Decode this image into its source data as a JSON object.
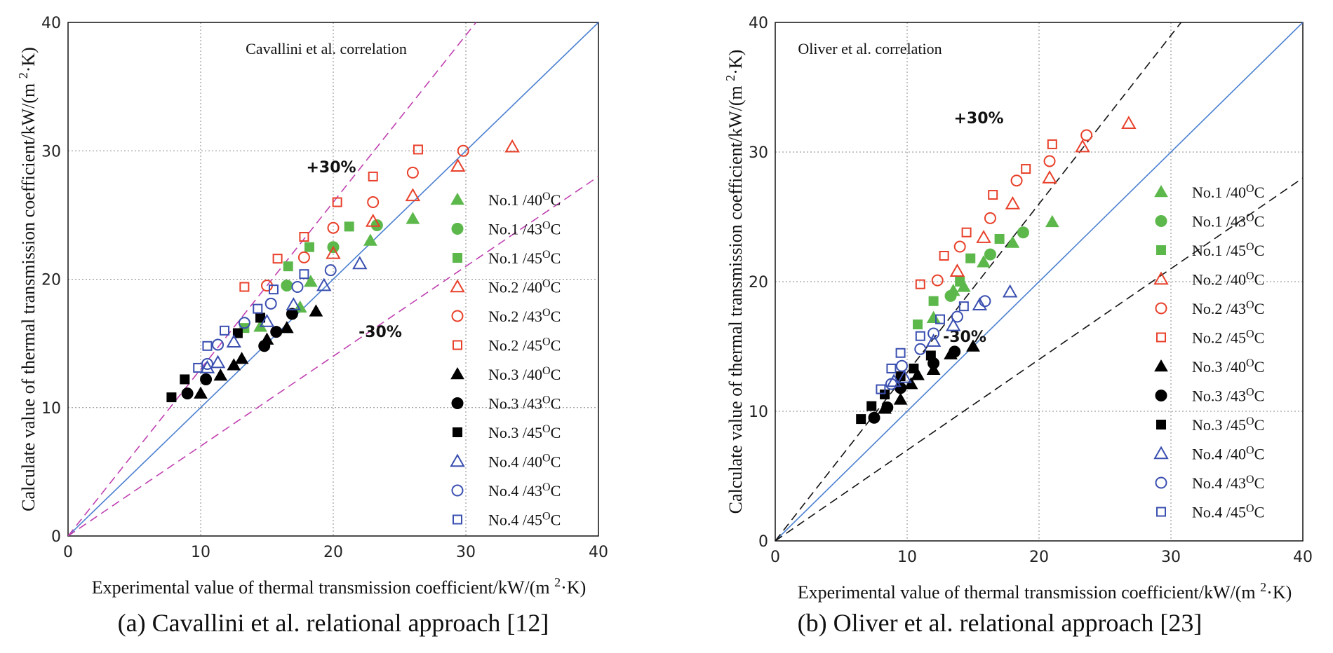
{
  "colors": {
    "green": "#5cb84a",
    "red": "#e8402a",
    "black": "#000000",
    "blue": "#3a4fb0",
    "diagonal": "#4a7fd0",
    "band_a": "#c040b0",
    "band_b": "#111111",
    "grid": "#888888"
  },
  "legend": [
    {
      "label": "No.1 /40",
      "unit": "C",
      "sup": "O",
      "color_key": "green",
      "marker": "triangle",
      "filled": true
    },
    {
      "label": "No.1 /43",
      "unit": "C",
      "sup": "O",
      "color_key": "green",
      "marker": "circle",
      "filled": true
    },
    {
      "label": "No.1 /45",
      "unit": "C",
      "sup": "O",
      "color_key": "green",
      "marker": "square",
      "filled": true
    },
    {
      "label": "No.2 /40",
      "unit": "C",
      "sup": "O",
      "color_key": "red",
      "marker": "triangle",
      "filled": false
    },
    {
      "label": "No.2 /43",
      "unit": "C",
      "sup": "O",
      "color_key": "red",
      "marker": "circle",
      "filled": false
    },
    {
      "label": "No.2 /45",
      "unit": "C",
      "sup": "O",
      "color_key": "red",
      "marker": "square",
      "filled": false
    },
    {
      "label": "No.3 /40",
      "unit": "C",
      "sup": "O",
      "color_key": "black",
      "marker": "triangle",
      "filled": true
    },
    {
      "label": "No.3 /43",
      "unit": "C",
      "sup": "O",
      "color_key": "black",
      "marker": "circle",
      "filled": true
    },
    {
      "label": "No.3 /45",
      "unit": "C",
      "sup": "O",
      "color_key": "black",
      "marker": "square",
      "filled": true
    },
    {
      "label": "No.4 /40",
      "unit": "C",
      "sup": "O",
      "color_key": "blue",
      "marker": "triangle",
      "filled": false
    },
    {
      "label": "No.4 /43",
      "unit": "C",
      "sup": "O",
      "color_key": "blue",
      "marker": "circle",
      "filled": false
    },
    {
      "label": "No.4 /45",
      "unit": "C",
      "sup": "O",
      "color_key": "blue",
      "marker": "square",
      "filled": false
    }
  ],
  "chart_data": [
    {
      "type": "scatter",
      "title": "Cavallini et al. correlation",
      "caption": "(a) Cavallini et al. relational approach [12]",
      "xlabel": "Experimental value of thermal transmission coefficient/kW/(m 2·K)",
      "ylabel": "Calculate value of thermal transmission coefficient/kW/(m 2·K)",
      "xlim": [
        0,
        40
      ],
      "ylim": [
        0,
        40
      ],
      "x_ticks": [
        0,
        10,
        20,
        30,
        40
      ],
      "y_ticks": [
        0,
        10,
        20,
        30,
        40
      ],
      "grid": "dotted at 10, 20, 30",
      "reference_lines": {
        "diagonal": "y = x",
        "upper": "+30%",
        "lower": "-30%",
        "band_color_key": "band_a"
      },
      "band_labels": {
        "upper": "+30%",
        "lower": "-30%"
      },
      "series": [
        {
          "name": "No.1 /40oC",
          "points": [
            [
              14.5,
              16.3
            ],
            [
              17.5,
              17.8
            ],
            [
              18.3,
              19.8
            ],
            [
              22.8,
              23.0
            ],
            [
              26.0,
              24.7
            ]
          ]
        },
        {
          "name": "No.1 /43oC",
          "points": [
            [
              16.5,
              19.5
            ],
            [
              20.0,
              22.5
            ],
            [
              23.3,
              24.2
            ]
          ]
        },
        {
          "name": "No.1 /45oC",
          "points": [
            [
              13.3,
              16.2
            ],
            [
              16.6,
              21.0
            ],
            [
              18.2,
              22.5
            ],
            [
              21.2,
              24.1
            ]
          ]
        },
        {
          "name": "No.2 /40oC",
          "points": [
            [
              20.0,
              22.0
            ],
            [
              23.0,
              24.5
            ],
            [
              26.0,
              26.5
            ],
            [
              29.4,
              28.8
            ],
            [
              33.5,
              30.3
            ]
          ]
        },
        {
          "name": "No.2 /43oC",
          "points": [
            [
              15.0,
              19.5
            ],
            [
              17.8,
              21.7
            ],
            [
              20.0,
              24.0
            ],
            [
              23.0,
              26.0
            ],
            [
              26.0,
              28.3
            ],
            [
              29.8,
              30.0
            ]
          ]
        },
        {
          "name": "No.2 /45oC",
          "points": [
            [
              13.3,
              19.4
            ],
            [
              15.8,
              21.6
            ],
            [
              17.8,
              23.3
            ],
            [
              20.3,
              26.0
            ],
            [
              23.0,
              28.0
            ],
            [
              26.4,
              30.1
            ]
          ]
        },
        {
          "name": "No.3 /40oC",
          "points": [
            [
              10.0,
              11.1
            ],
            [
              11.5,
              12.5
            ],
            [
              12.5,
              13.3
            ],
            [
              13.1,
              13.8
            ],
            [
              15.0,
              15.3
            ],
            [
              16.5,
              16.2
            ],
            [
              18.7,
              17.5
            ]
          ]
        },
        {
          "name": "No.3 /43oC",
          "points": [
            [
              9.0,
              11.1
            ],
            [
              10.4,
              12.2
            ],
            [
              14.8,
              14.8
            ],
            [
              15.7,
              15.9
            ],
            [
              16.9,
              17.3
            ]
          ]
        },
        {
          "name": "No.3 /45oC",
          "points": [
            [
              7.8,
              10.8
            ],
            [
              8.8,
              12.2
            ],
            [
              12.8,
              15.8
            ],
            [
              14.5,
              17.0
            ]
          ]
        },
        {
          "name": "No.4 /40oC",
          "points": [
            [
              10.5,
              13.1
            ],
            [
              11.3,
              13.5
            ],
            [
              12.5,
              15.1
            ],
            [
              15.0,
              16.7
            ],
            [
              17.0,
              18.0
            ],
            [
              19.3,
              19.5
            ],
            [
              22.0,
              21.2
            ]
          ]
        },
        {
          "name": "No.4 /43oC",
          "points": [
            [
              10.5,
              13.4
            ],
            [
              11.3,
              14.9
            ],
            [
              13.3,
              16.6
            ],
            [
              15.3,
              18.1
            ],
            [
              17.3,
              19.4
            ],
            [
              19.8,
              20.7
            ]
          ]
        },
        {
          "name": "No.4 /45oC",
          "points": [
            [
              9.8,
              13.1
            ],
            [
              10.5,
              14.8
            ],
            [
              11.8,
              16.0
            ],
            [
              14.3,
              17.7
            ],
            [
              15.5,
              19.2
            ],
            [
              17.8,
              20.4
            ]
          ]
        }
      ]
    },
    {
      "type": "scatter",
      "title": "Oliver et al. correlation",
      "caption": "(b) Oliver et al. relational approach [23]",
      "xlabel": "Experimental value of thermal transmission coefficient/kW/(m 2·K)",
      "ylabel": "Calculate value of thermal transmission coefficient/kW/(m 2·K)",
      "xlim": [
        0,
        40
      ],
      "ylim": [
        0,
        40
      ],
      "x_ticks": [
        0,
        10,
        20,
        30,
        40
      ],
      "y_ticks": [
        0,
        10,
        20,
        30,
        40
      ],
      "grid": "dotted at 10, 20, 30",
      "reference_lines": {
        "diagonal": "y = x",
        "upper": "+30%",
        "lower": "-30%",
        "band_color_key": "band_b"
      },
      "band_labels": {
        "upper": "+30%",
        "lower": "-30%"
      },
      "series": [
        {
          "name": "No.1 /40oC",
          "points": [
            [
              12.0,
              17.2
            ],
            [
              13.5,
              19.3
            ],
            [
              14.3,
              19.6
            ],
            [
              15.8,
              21.5
            ],
            [
              18.0,
              23.0
            ],
            [
              21.0,
              24.6
            ]
          ]
        },
        {
          "name": "No.1 /43oC",
          "points": [
            [
              13.3,
              18.9
            ],
            [
              16.3,
              22.1
            ],
            [
              18.8,
              23.8
            ]
          ]
        },
        {
          "name": "No.1 /45oC",
          "points": [
            [
              10.8,
              16.7
            ],
            [
              12.0,
              18.5
            ],
            [
              14.0,
              20.0
            ],
            [
              14.8,
              21.8
            ],
            [
              17.0,
              23.3
            ]
          ]
        },
        {
          "name": "No.2 /40oC",
          "points": [
            [
              13.8,
              20.8
            ],
            [
              15.8,
              23.4
            ],
            [
              18.0,
              26.0
            ],
            [
              20.8,
              28.0
            ],
            [
              23.3,
              30.4
            ],
            [
              26.8,
              32.2
            ]
          ]
        },
        {
          "name": "No.2 /43oC",
          "points": [
            [
              12.3,
              20.1
            ],
            [
              14.0,
              22.7
            ],
            [
              16.3,
              24.9
            ],
            [
              18.3,
              27.8
            ],
            [
              20.8,
              29.3
            ],
            [
              23.6,
              31.3
            ]
          ]
        },
        {
          "name": "No.2 /45oC",
          "points": [
            [
              11.0,
              19.8
            ],
            [
              12.8,
              22.0
            ],
            [
              14.5,
              23.8
            ],
            [
              16.5,
              26.7
            ],
            [
              19.0,
              28.7
            ],
            [
              21.0,
              30.6
            ]
          ]
        },
        {
          "name": "No.3 /40oC",
          "points": [
            [
              8.3,
              10.2
            ],
            [
              9.5,
              10.9
            ],
            [
              10.3,
              12.1
            ],
            [
              10.8,
              12.8
            ],
            [
              12.0,
              13.2
            ],
            [
              13.3,
              14.4
            ],
            [
              15.0,
              15.0
            ]
          ]
        },
        {
          "name": "No.3 /43oC",
          "points": [
            [
              7.5,
              9.5
            ],
            [
              8.5,
              10.3
            ],
            [
              9.5,
              11.8
            ],
            [
              12.0,
              13.7
            ],
            [
              13.6,
              14.6
            ]
          ]
        },
        {
          "name": "No.3 /45oC",
          "points": [
            [
              6.5,
              9.4
            ],
            [
              7.3,
              10.4
            ],
            [
              8.3,
              11.3
            ],
            [
              9.5,
              12.7
            ],
            [
              10.5,
              13.3
            ],
            [
              11.8,
              14.3
            ]
          ]
        },
        {
          "name": "No.4 /40oC",
          "points": [
            [
              9.0,
              12.3
            ],
            [
              9.8,
              12.6
            ],
            [
              12.0,
              15.4
            ],
            [
              13.5,
              16.6
            ],
            [
              15.5,
              18.2
            ],
            [
              17.8,
              19.2
            ]
          ]
        },
        {
          "name": "No.4 /43oC",
          "points": [
            [
              8.8,
              12.1
            ],
            [
              9.6,
              13.5
            ],
            [
              11.0,
              14.8
            ],
            [
              12.0,
              16.0
            ],
            [
              13.8,
              17.3
            ],
            [
              15.9,
              18.5
            ]
          ]
        },
        {
          "name": "No.4 /45oC",
          "points": [
            [
              8.0,
              11.7
            ],
            [
              8.8,
              13.3
            ],
            [
              9.5,
              14.5
            ],
            [
              11.0,
              15.8
            ],
            [
              12.5,
              17.1
            ],
            [
              14.3,
              18.1
            ]
          ]
        }
      ]
    }
  ]
}
